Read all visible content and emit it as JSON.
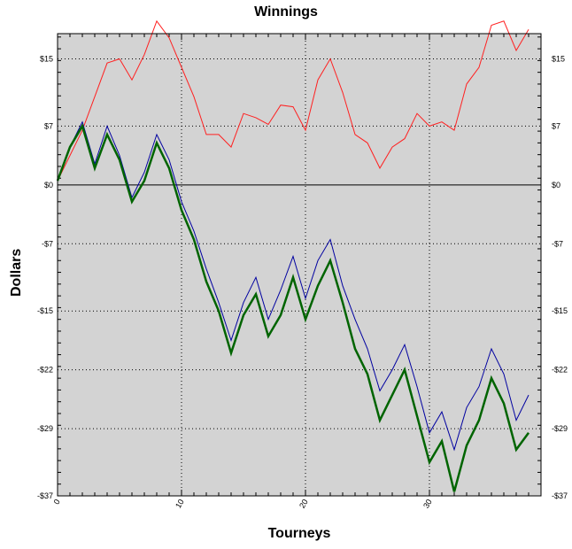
{
  "chart_data": {
    "type": "line",
    "title": "Winnings",
    "xlabel": "Tourneys",
    "ylabel": "Dollars",
    "xlim": [
      0,
      39
    ],
    "ylim": [
      -37,
      18
    ],
    "x_ticks": [
      0,
      10,
      20,
      30
    ],
    "x_tick_labels": [
      "0",
      "10",
      "20",
      "30"
    ],
    "y_ticks": [
      15,
      7,
      0,
      -7,
      -15,
      -22,
      -29,
      -37
    ],
    "y_tick_labels": [
      "$15",
      "$7",
      "$0",
      "-$7",
      "-$15",
      "-$22",
      "-$29",
      "-$37"
    ],
    "grid": true,
    "background": "#d3d3d3",
    "series": [
      {
        "color": "#ff2020",
        "width": 1,
        "x": [
          0,
          1,
          2,
          3,
          4,
          5,
          6,
          7,
          8,
          9,
          10,
          11,
          12,
          13,
          14,
          15,
          16,
          17,
          18,
          19,
          20,
          21,
          22,
          23,
          24,
          25,
          26,
          27,
          28,
          29,
          30,
          31,
          32,
          33,
          34,
          35,
          36,
          37,
          38
        ],
        "values": [
          0.5,
          3.5,
          6.5,
          10.5,
          14.5,
          15,
          12.5,
          15.5,
          19.5,
          17.5,
          14,
          10.5,
          6,
          6,
          4.5,
          8.5,
          8,
          7.2,
          9.5,
          9.3,
          6.5,
          12.5,
          15,
          11,
          6,
          5,
          2,
          4.5,
          5.5,
          8.5,
          7,
          7.5,
          6.5,
          12,
          14,
          19,
          19.5,
          16,
          18.5
        ]
      },
      {
        "color": "#0000a0",
        "width": 1,
        "x": [
          0,
          1,
          2,
          3,
          4,
          5,
          6,
          7,
          8,
          9,
          10,
          11,
          12,
          13,
          14,
          15,
          16,
          17,
          18,
          19,
          20,
          21,
          22,
          23,
          24,
          25,
          26,
          27,
          28,
          29,
          30,
          31,
          32,
          33,
          34,
          35,
          36,
          37,
          38
        ],
        "values": [
          0.5,
          4.5,
          7.5,
          2.5,
          7,
          3.5,
          -1.5,
          1.5,
          6,
          3,
          -2,
          -5.5,
          -10,
          -14,
          -18.5,
          -14,
          -11,
          -16,
          -12.5,
          -8.5,
          -13.5,
          -9,
          -6.5,
          -12,
          -16,
          -19.5,
          -24.5,
          -22,
          -19,
          -24,
          -29.5,
          -27,
          -31.5,
          -26.5,
          -24,
          -19.5,
          -22.5,
          -28,
          -25
        ]
      },
      {
        "color": "#006400",
        "width": 2.5,
        "x": [
          0,
          1,
          2,
          3,
          4,
          5,
          6,
          7,
          8,
          9,
          10,
          11,
          12,
          13,
          14,
          15,
          16,
          17,
          18,
          19,
          20,
          21,
          22,
          23,
          24,
          25,
          26,
          27,
          28,
          29,
          30,
          31,
          32,
          33,
          34,
          35,
          36,
          37,
          38
        ],
        "values": [
          0.5,
          4.5,
          7,
          2,
          6,
          3,
          -2,
          0.5,
          5,
          2,
          -3,
          -6.5,
          -11.5,
          -15,
          -20,
          -15.5,
          -13,
          -18,
          -15.5,
          -11,
          -16,
          -12,
          -9,
          -14,
          -19.5,
          -22.5,
          -28,
          -25,
          -22,
          -27.5,
          -33,
          -30.5,
          -36.5,
          -31,
          -28,
          -23,
          -26,
          -31.5,
          -29.5
        ]
      }
    ]
  }
}
